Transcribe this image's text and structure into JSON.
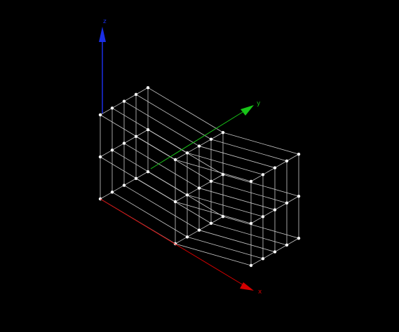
{
  "viewport": {
    "background": "#000000",
    "axes": [
      {
        "id": "x",
        "label": "x",
        "color": "#d40000"
      },
      {
        "id": "y",
        "label": "y",
        "color": "#18c418"
      },
      {
        "id": "z",
        "label": "z",
        "color": "#1a2ee6"
      }
    ],
    "grid": {
      "x_nodes": 3,
      "y_nodes": 5,
      "z_nodes": 3,
      "line_color": "#c8c8c8",
      "node_color": "#ffffff"
    }
  }
}
